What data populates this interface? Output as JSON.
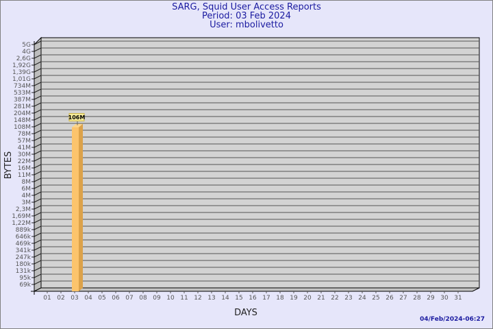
{
  "header": {
    "title": "SARG, Squid User Access Reports",
    "period": "Period: 03 Feb 2024",
    "user": "User: mbolivetto"
  },
  "footer": {
    "timestamp": "04/Feb/2024-06:27"
  },
  "colors": {
    "background": "#e6e6fa",
    "plot_wall": "#d3d3d3",
    "bar_front": "#fcc46c",
    "bar_side": "#dca24a",
    "label_box": "#f8ee9c",
    "title": "#1a1aa0"
  },
  "chart_data": {
    "type": "bar",
    "title": "",
    "xlabel": "DAYS",
    "ylabel": "BYTES",
    "y_scale": "log",
    "grid": true,
    "y_tick_labels": [
      "5G",
      "4G",
      "2,6G",
      "1,92G",
      "1,39G",
      "1,01G",
      "734M",
      "533M",
      "387M",
      "281M",
      "204M",
      "148M",
      "108M",
      "78M",
      "57M",
      "41M",
      "30M",
      "22M",
      "16M",
      "11M",
      "8M",
      "6M",
      "4M",
      "3M",
      "2,3M",
      "1,69M",
      "1,22M",
      "889k",
      "646k",
      "469k",
      "341k",
      "247k",
      "180k",
      "131k",
      "95k",
      "69k"
    ],
    "categories": [
      "01",
      "02",
      "03",
      "04",
      "05",
      "06",
      "07",
      "08",
      "09",
      "10",
      "11",
      "12",
      "13",
      "14",
      "15",
      "16",
      "17",
      "18",
      "19",
      "20",
      "21",
      "22",
      "23",
      "24",
      "25",
      "26",
      "27",
      "28",
      "29",
      "30",
      "31"
    ],
    "series": [
      {
        "points": [
          {
            "x": "03",
            "value": 106000000,
            "label": "106M"
          }
        ]
      }
    ]
  }
}
